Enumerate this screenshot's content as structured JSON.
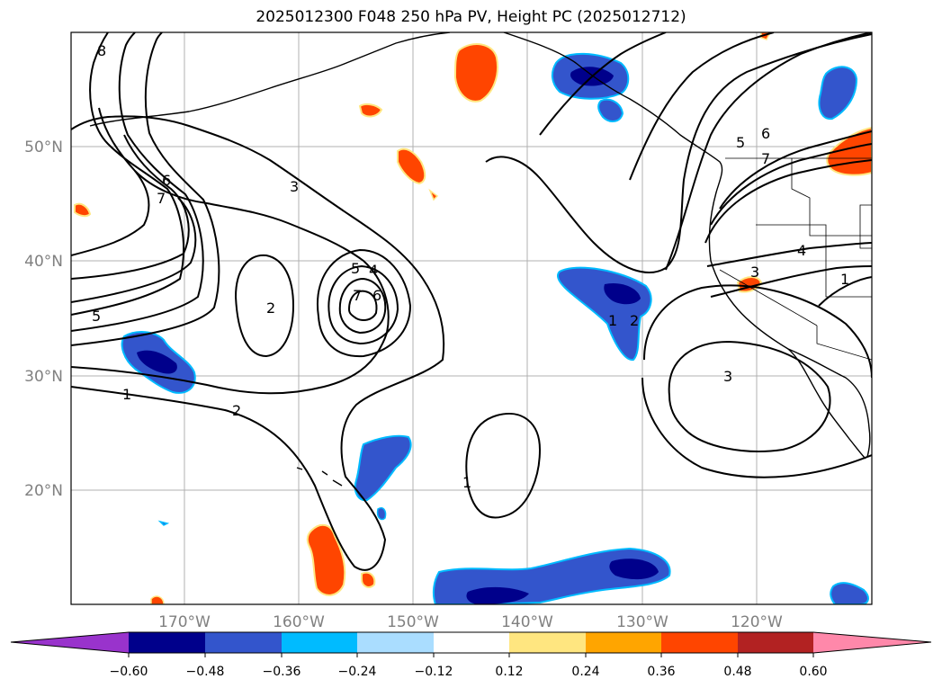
{
  "title": "2025012300 F048 250 hPa PV, Height PC (2025012712)",
  "lat_labels": [
    "50°N",
    "40°N",
    "30°N",
    "20°N"
  ],
  "lon_labels": [
    "170°W",
    "160°W",
    "150°W",
    "140°W",
    "130°W",
    "120°W"
  ],
  "colorbar": {
    "ticks": [
      "−0.60",
      "−0.48",
      "−0.36",
      "−0.24",
      "−0.12",
      "0.12",
      "0.24",
      "0.36",
      "0.48",
      "0.60"
    ],
    "colors": [
      "#9933cc",
      "#00008b",
      "#3355cc",
      "#00bbff",
      "#aaddff",
      "#ffffff",
      "#ffe680",
      "#ffa500",
      "#ff4500",
      "#b22222",
      "#ff88aa"
    ]
  },
  "contour_labels": [
    "8",
    "6",
    "7",
    "3",
    "5",
    "4",
    "7",
    "6",
    "2",
    "5",
    "1",
    "2",
    "1",
    "1",
    "2",
    "3",
    "5",
    "6",
    "7",
    "4",
    "3",
    "1"
  ]
}
